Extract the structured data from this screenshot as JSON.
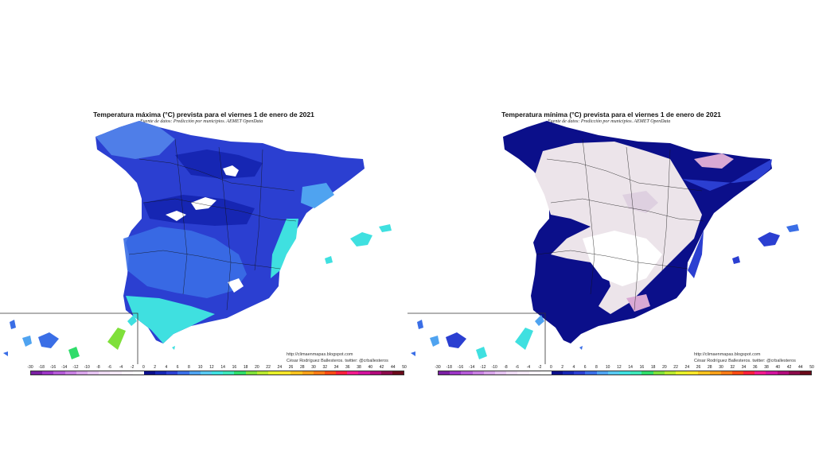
{
  "maps": [
    {
      "title": "Temperatura máxima (°C) prevista para el viernes 1 de enero de 2021",
      "source": "Fuente de datos: Predicción por municipios. AEMET OpenData",
      "credit_url": "http://climaenmapas.blogspot.com",
      "credit_author": "César Rodríguez Ballesteros. twitter: @crballesteros",
      "dominant_range": "-2 to 14 °C",
      "fill_colors": {
        "coldest": "#ffffff",
        "dark": "#2233cc",
        "mid": "#3a6ee6",
        "light": "#4fa3f0",
        "warm": "#3fe0e0"
      }
    },
    {
      "title": "Temperatura mínima (°C) prevista para el viernes 1 de enero de 2021",
      "source": "Fuente de datos: Predicción por municipios. AEMET OpenData",
      "credit_url": "http://climaenmapas.blogspot.com",
      "credit_author": "César Rodríguez Ballesteros. twitter: @crballesteros",
      "dominant_range": "-12 to 8 °C",
      "fill_colors": {
        "frost": "#ece4ea",
        "deep_frost": "#d9a9d4",
        "zero": "#ffffff",
        "dark": "#0b0f8a",
        "mid": "#2b3fd1"
      }
    }
  ],
  "scale": {
    "ticks": [
      "-30",
      "-18",
      "-16",
      "-14",
      "-12",
      "-10",
      "-8",
      "-6",
      "-4",
      "-2",
      "0",
      "2",
      "4",
      "6",
      "8",
      "10",
      "12",
      "14",
      "16",
      "18",
      "20",
      "22",
      "24",
      "26",
      "28",
      "30",
      "32",
      "34",
      "36",
      "38",
      "40",
      "42",
      "44",
      "50"
    ],
    "colors": [
      "#7a1fa2",
      "#9b35c4",
      "#b45ad6",
      "#c77fe0",
      "#d7a3e8",
      "#e3c1ee",
      "#ecd9f1",
      "#f2e6f4",
      "#f8f2f9",
      "#ffffff",
      "#0b0f8a",
      "#1626b3",
      "#2b3fd1",
      "#3a6ee6",
      "#4fa3f0",
      "#58c8f0",
      "#3fe0e0",
      "#3ee6b8",
      "#2fdc6a",
      "#7fe03a",
      "#b8e82e",
      "#e6f02a",
      "#ffe52a",
      "#ffc21f",
      "#ffa01a",
      "#ff7a17",
      "#ff4a14",
      "#ff1f3c",
      "#f01a8c",
      "#d0129c",
      "#b00a7a",
      "#8a0a4a",
      "#6a0a1a"
    ]
  }
}
